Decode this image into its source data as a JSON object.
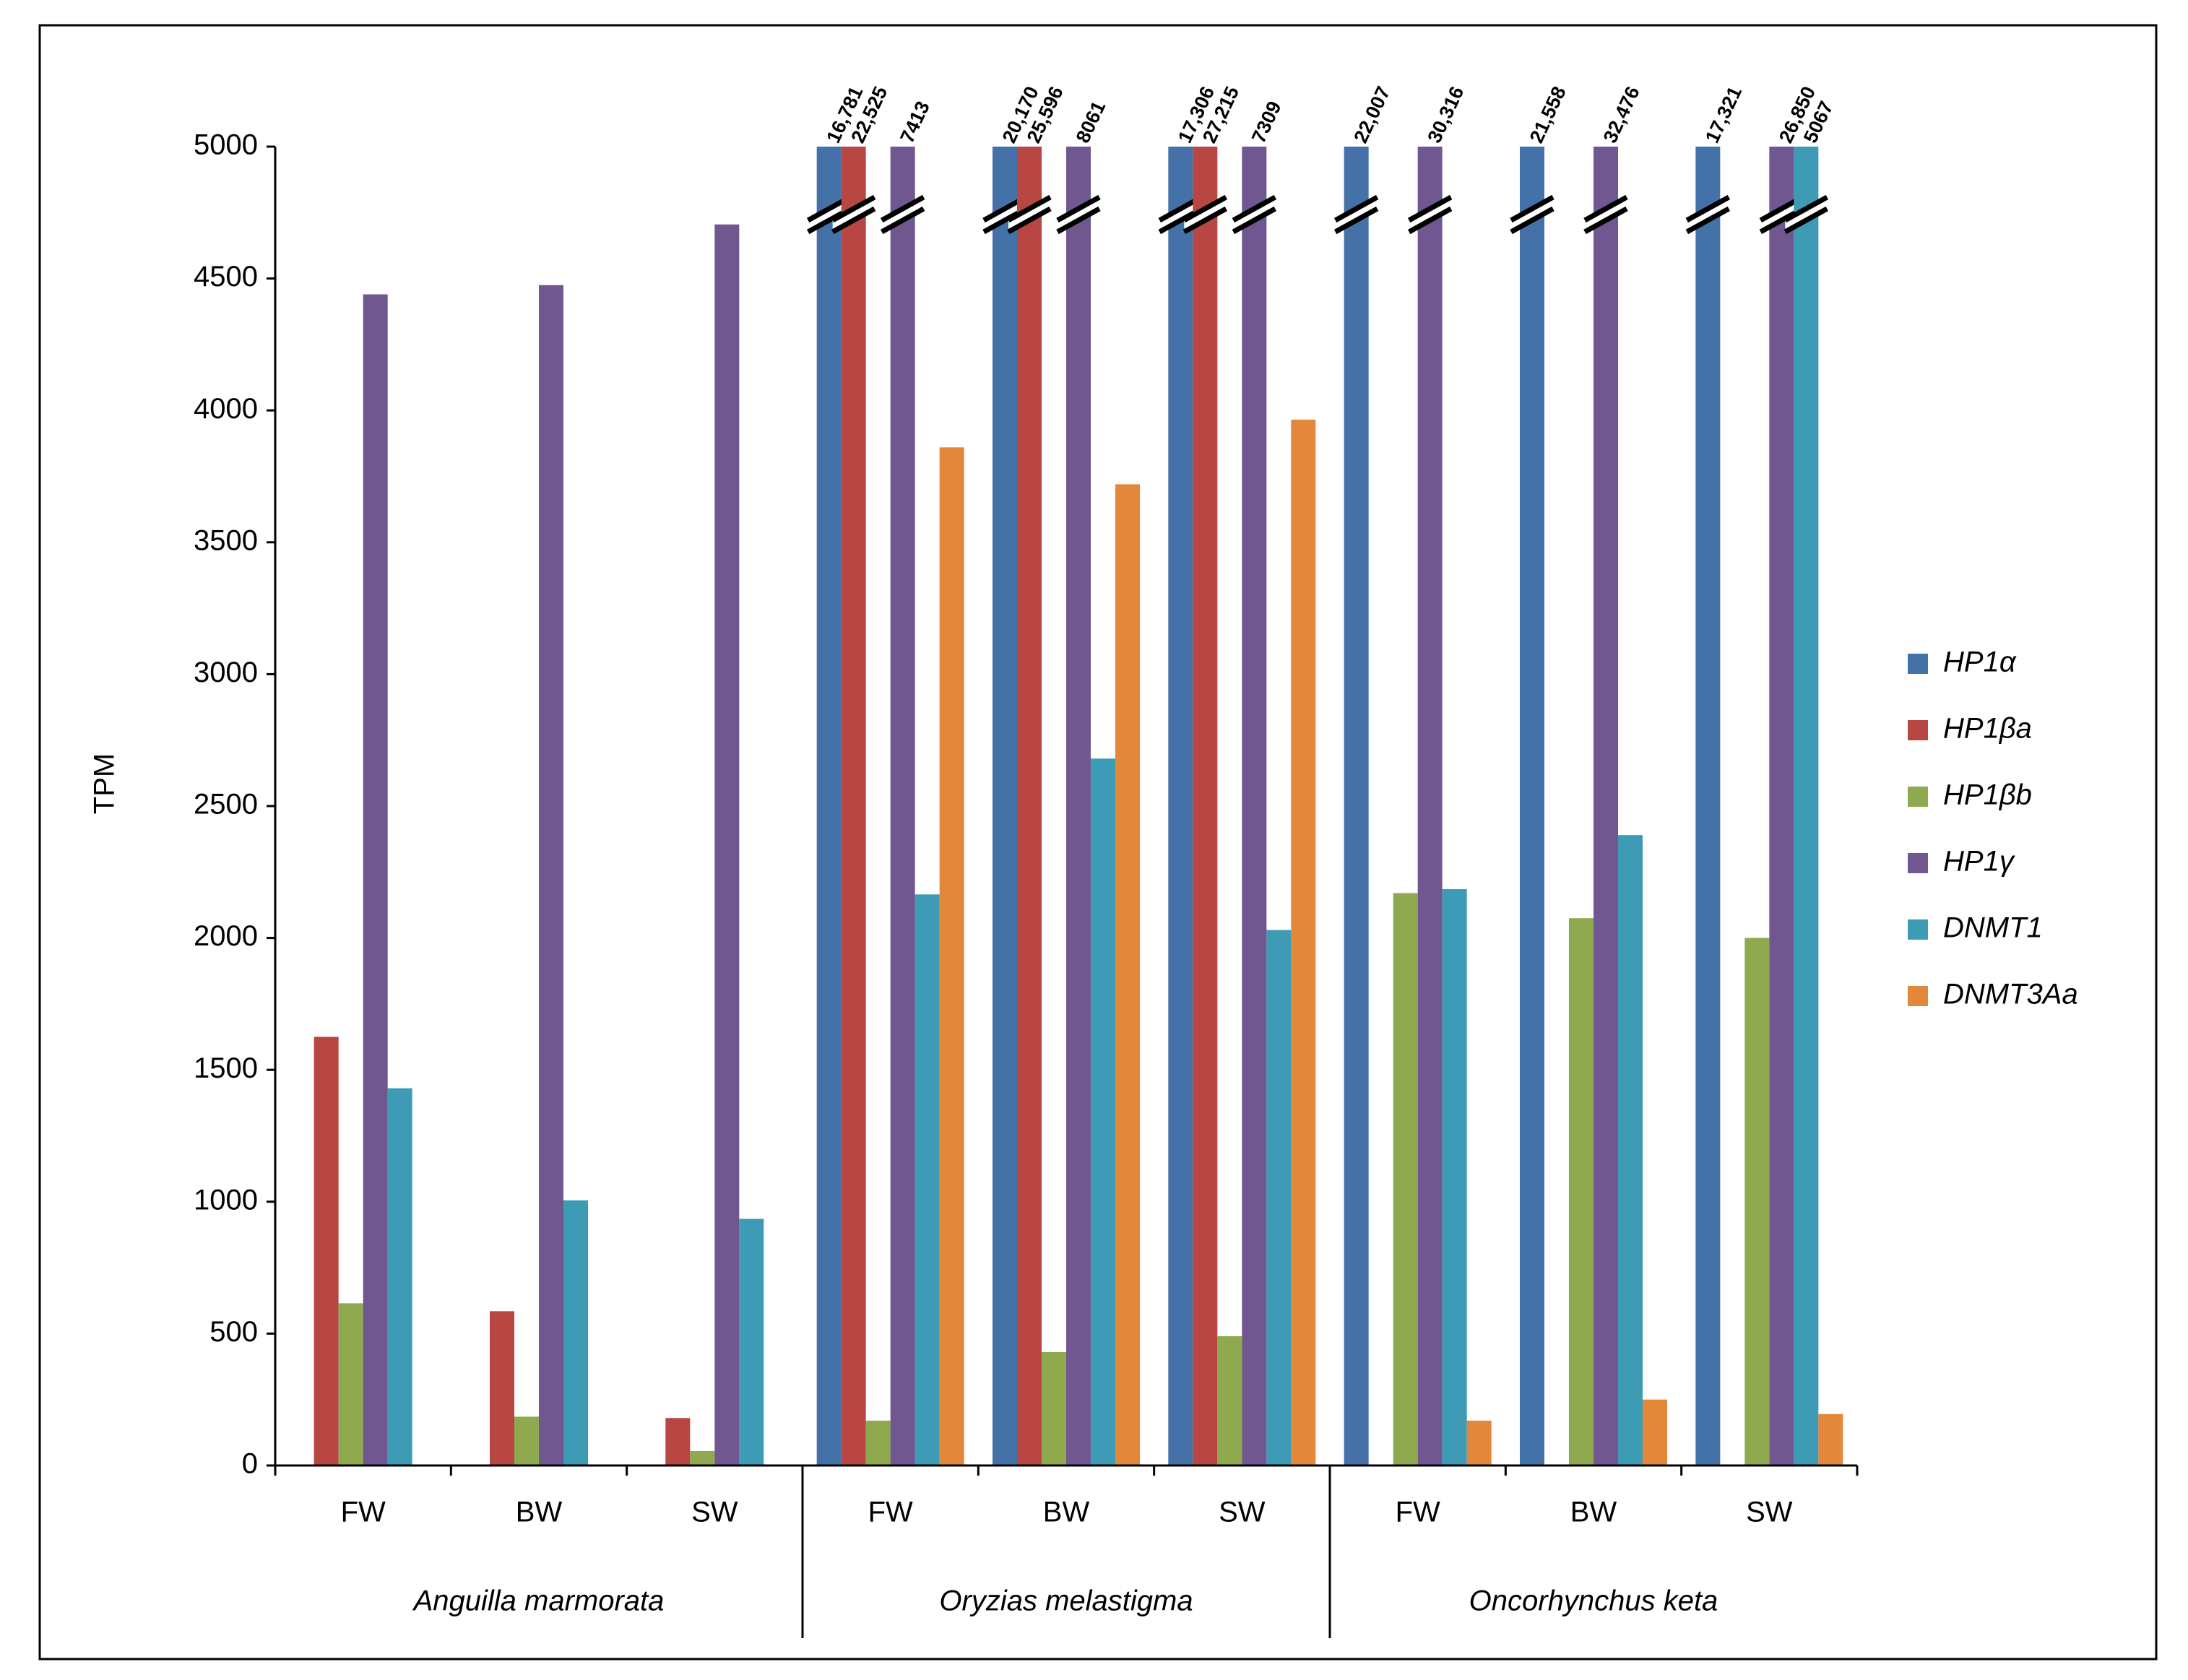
{
  "chart_data": {
    "type": "bar",
    "y_label": "TPM",
    "categories": [
      "FW",
      "BW",
      "SW",
      "FW",
      "BW",
      "SW",
      "FW",
      "BW",
      "SW"
    ],
    "groups": [
      "Anguilla marmorata",
      "Oryzias  melastigma",
      "Oncorhynchus  keta"
    ],
    "ylim": [
      0,
      5000
    ],
    "yticks": [
      0,
      500,
      1000,
      1500,
      2000,
      2500,
      3000,
      3500,
      4000,
      4500,
      5000
    ],
    "grid": false,
    "legend": "right",
    "series": [
      {
        "name": "HP1α",
        "color": "#4472a8",
        "values": [
          null,
          null,
          null,
          16781,
          20170,
          17306,
          22007,
          21558,
          17321
        ],
        "value_labels": [
          null,
          null,
          null,
          "16,781",
          "20,170",
          "17,306",
          "22,007",
          "21,558",
          "17,321"
        ]
      },
      {
        "name": "HP1βa",
        "color": "#b84643",
        "values": [
          1625,
          585,
          180,
          22525,
          25596,
          27215,
          null,
          null,
          null
        ],
        "value_labels": [
          null,
          null,
          null,
          "22,525",
          "25,596",
          "27,215",
          null,
          null,
          null
        ]
      },
      {
        "name": "HP1βb",
        "color": "#8fa94f",
        "values": [
          615,
          185,
          55,
          170,
          430,
          490,
          2170,
          2075,
          2000
        ]
      },
      {
        "name": "HP1γ",
        "color": "#71578f",
        "values": [
          4440,
          4475,
          4705,
          7413,
          8061,
          7309,
          30316,
          32476,
          26850
        ],
        "value_labels": [
          null,
          null,
          null,
          "7413",
          "8061",
          "7309",
          "30,316",
          "32,476",
          "26,850"
        ]
      },
      {
        "name": "DNMT1",
        "color": "#3e9bb5",
        "values": [
          1430,
          1005,
          935,
          2165,
          2680,
          2030,
          2185,
          2390,
          5067
        ],
        "value_labels": [
          null,
          null,
          null,
          null,
          null,
          null,
          null,
          null,
          "5067"
        ]
      },
      {
        "name": "DNMT3Aa",
        "color": "#e3883a",
        "values": [
          null,
          null,
          null,
          3860,
          3720,
          3965,
          170,
          250,
          195
        ]
      }
    ]
  }
}
